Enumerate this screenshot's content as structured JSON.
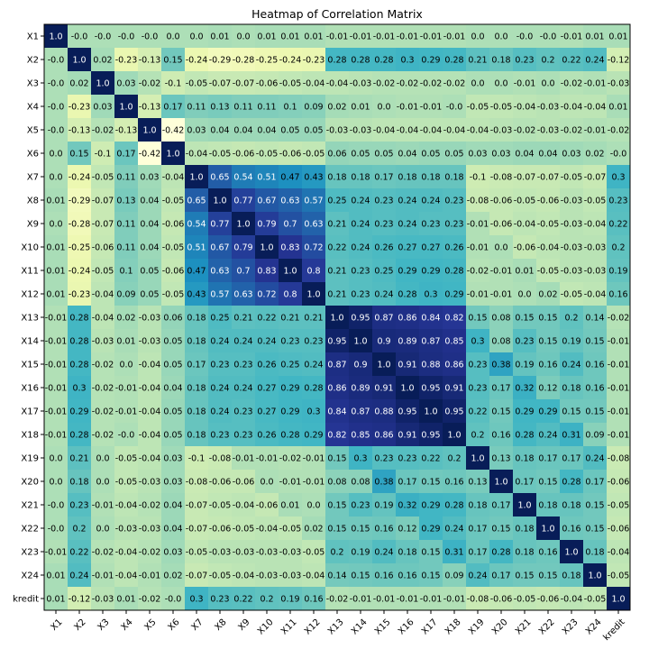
{
  "chart_data": {
    "type": "heatmap",
    "title": "Heatmap of Correlation Matrix",
    "labels": [
      "X1",
      "X2",
      "X3",
      "X4",
      "X5",
      "X6",
      "X7",
      "X8",
      "X9",
      "X10",
      "X11",
      "X12",
      "X13",
      "X14",
      "X15",
      "X16",
      "X17",
      "X18",
      "X19",
      "X20",
      "X21",
      "X22",
      "X23",
      "X24",
      "kredit"
    ],
    "matrix": [
      [
        "1.0",
        "-0.0",
        "-0.0",
        "-0.0",
        "-0.0",
        "0.0",
        "0.0",
        "0.01",
        "0.0",
        "0.01",
        "0.01",
        "0.01",
        "-0.01",
        "-0.01",
        "-0.01",
        "-0.01",
        "-0.01",
        "-0.01",
        "0.0",
        "0.0",
        "-0.0",
        "-0.0",
        "-0.01",
        "0.01",
        "0.01"
      ],
      [
        "-0.0",
        "1.0",
        "0.02",
        "-0.23",
        "-0.13",
        "0.15",
        "-0.24",
        "-0.29",
        "-0.28",
        "-0.25",
        "-0.24",
        "-0.23",
        "0.28",
        "0.28",
        "0.28",
        "0.3",
        "0.29",
        "0.28",
        "0.21",
        "0.18",
        "0.23",
        "0.2",
        "0.22",
        "0.24",
        "-0.12"
      ],
      [
        "-0.0",
        "0.02",
        "1.0",
        "0.03",
        "-0.02",
        "-0.1",
        "-0.05",
        "-0.07",
        "-0.07",
        "-0.06",
        "-0.05",
        "-0.04",
        "-0.04",
        "-0.03",
        "-0.02",
        "-0.02",
        "-0.02",
        "-0.02",
        "0.0",
        "0.0",
        "-0.01",
        "0.0",
        "-0.02",
        "-0.01",
        "-0.03"
      ],
      [
        "-0.0",
        "-0.23",
        "0.03",
        "1.0",
        "-0.13",
        "0.17",
        "0.11",
        "0.13",
        "0.11",
        "0.11",
        "0.1",
        "0.09",
        "0.02",
        "0.01",
        "0.0",
        "-0.01",
        "-0.01",
        "-0.0",
        "-0.05",
        "-0.05",
        "-0.04",
        "-0.03",
        "-0.04",
        "-0.04",
        "0.01"
      ],
      [
        "-0.0",
        "-0.13",
        "-0.02",
        "-0.13",
        "1.0",
        "-0.42",
        "0.03",
        "0.04",
        "0.04",
        "0.04",
        "0.05",
        "0.05",
        "-0.03",
        "-0.03",
        "-0.04",
        "-0.04",
        "-0.04",
        "-0.04",
        "-0.04",
        "-0.03",
        "-0.02",
        "-0.03",
        "-0.02",
        "-0.01",
        "-0.02"
      ],
      [
        "0.0",
        "0.15",
        "-0.1",
        "0.17",
        "-0.42",
        "1.0",
        "-0.04",
        "-0.05",
        "-0.06",
        "-0.05",
        "-0.06",
        "-0.05",
        "0.06",
        "0.05",
        "0.05",
        "0.04",
        "0.05",
        "0.05",
        "0.03",
        "0.03",
        "0.04",
        "0.04",
        "0.03",
        "0.02",
        "-0.0"
      ],
      [
        "0.0",
        "-0.24",
        "-0.05",
        "0.11",
        "0.03",
        "-0.04",
        "1.0",
        "0.65",
        "0.54",
        "0.51",
        "0.47",
        "0.43",
        "0.18",
        "0.18",
        "0.17",
        "0.18",
        "0.18",
        "0.18",
        "-0.1",
        "-0.08",
        "-0.07",
        "-0.07",
        "-0.05",
        "-0.07",
        "0.3"
      ],
      [
        "0.01",
        "-0.29",
        "-0.07",
        "0.13",
        "0.04",
        "-0.05",
        "0.65",
        "1.0",
        "0.77",
        "0.67",
        "0.63",
        "0.57",
        "0.25",
        "0.24",
        "0.23",
        "0.24",
        "0.24",
        "0.23",
        "-0.08",
        "-0.06",
        "-0.05",
        "-0.06",
        "-0.03",
        "-0.05",
        "0.23"
      ],
      [
        "0.0",
        "-0.28",
        "-0.07",
        "0.11",
        "0.04",
        "-0.06",
        "0.54",
        "0.77",
        "1.0",
        "0.79",
        "0.7",
        "0.63",
        "0.21",
        "0.24",
        "0.23",
        "0.24",
        "0.23",
        "0.23",
        "-0.01",
        "-0.06",
        "-0.04",
        "-0.05",
        "-0.03",
        "-0.04",
        "0.22"
      ],
      [
        "0.01",
        "-0.25",
        "-0.06",
        "0.11",
        "0.04",
        "-0.05",
        "0.51",
        "0.67",
        "0.79",
        "1.0",
        "0.83",
        "0.72",
        "0.22",
        "0.24",
        "0.26",
        "0.27",
        "0.27",
        "0.26",
        "-0.01",
        "0.0",
        "-0.06",
        "-0.04",
        "-0.03",
        "-0.03",
        "0.2"
      ],
      [
        "0.01",
        "-0.24",
        "-0.05",
        "0.1",
        "0.05",
        "-0.06",
        "0.47",
        "0.63",
        "0.7",
        "0.83",
        "1.0",
        "0.8",
        "0.21",
        "0.23",
        "0.25",
        "0.29",
        "0.29",
        "0.28",
        "-0.02",
        "-0.01",
        "0.01",
        "-0.05",
        "-0.03",
        "-0.03",
        "0.19"
      ],
      [
        "0.01",
        "-0.23",
        "-0.04",
        "0.09",
        "0.05",
        "-0.05",
        "0.43",
        "0.57",
        "0.63",
        "0.72",
        "0.8",
        "1.0",
        "0.21",
        "0.23",
        "0.24",
        "0.28",
        "0.3",
        "0.29",
        "-0.01",
        "-0.01",
        "0.0",
        "0.02",
        "-0.05",
        "-0.04",
        "0.16"
      ],
      [
        "-0.01",
        "0.28",
        "-0.04",
        "0.02",
        "-0.03",
        "0.06",
        "0.18",
        "0.25",
        "0.21",
        "0.22",
        "0.21",
        "0.21",
        "1.0",
        "0.95",
        "0.87",
        "0.86",
        "0.84",
        "0.82",
        "0.15",
        "0.08",
        "0.15",
        "0.15",
        "0.2",
        "0.14",
        "-0.02"
      ],
      [
        "-0.01",
        "0.28",
        "-0.03",
        "0.01",
        "-0.03",
        "0.05",
        "0.18",
        "0.24",
        "0.24",
        "0.24",
        "0.23",
        "0.23",
        "0.95",
        "1.0",
        "0.9",
        "0.89",
        "0.87",
        "0.85",
        "0.3",
        "0.08",
        "0.23",
        "0.15",
        "0.19",
        "0.15",
        "-0.01"
      ],
      [
        "-0.01",
        "0.28",
        "-0.02",
        "0.0",
        "-0.04",
        "0.05",
        "0.17",
        "0.23",
        "0.23",
        "0.26",
        "0.25",
        "0.24",
        "0.87",
        "0.9",
        "1.0",
        "0.91",
        "0.88",
        "0.86",
        "0.23",
        "0.38",
        "0.19",
        "0.16",
        "0.24",
        "0.16",
        "-0.01"
      ],
      [
        "-0.01",
        "0.3",
        "-0.02",
        "-0.01",
        "-0.04",
        "0.04",
        "0.18",
        "0.24",
        "0.24",
        "0.27",
        "0.29",
        "0.28",
        "0.86",
        "0.89",
        "0.91",
        "1.0",
        "0.95",
        "0.91",
        "0.23",
        "0.17",
        "0.32",
        "0.12",
        "0.18",
        "0.16",
        "-0.01"
      ],
      [
        "-0.01",
        "0.29",
        "-0.02",
        "-0.01",
        "-0.04",
        "0.05",
        "0.18",
        "0.24",
        "0.23",
        "0.27",
        "0.29",
        "0.3",
        "0.84",
        "0.87",
        "0.88",
        "0.95",
        "1.0",
        "0.95",
        "0.22",
        "0.15",
        "0.29",
        "0.29",
        "0.15",
        "0.15",
        "-0.01"
      ],
      [
        "-0.01",
        "0.28",
        "-0.02",
        "-0.0",
        "-0.04",
        "0.05",
        "0.18",
        "0.23",
        "0.23",
        "0.26",
        "0.28",
        "0.29",
        "0.82",
        "0.85",
        "0.86",
        "0.91",
        "0.95",
        "1.0",
        "0.2",
        "0.16",
        "0.28",
        "0.24",
        "0.31",
        "0.09",
        "-0.01"
      ],
      [
        "0.0",
        "0.21",
        "0.0",
        "-0.05",
        "-0.04",
        "0.03",
        "-0.1",
        "-0.08",
        "-0.01",
        "-0.01",
        "-0.02",
        "-0.01",
        "0.15",
        "0.3",
        "0.23",
        "0.23",
        "0.22",
        "0.2",
        "1.0",
        "0.13",
        "0.18",
        "0.17",
        "0.17",
        "0.24",
        "-0.08"
      ],
      [
        "0.0",
        "0.18",
        "0.0",
        "-0.05",
        "-0.03",
        "0.03",
        "-0.08",
        "-0.06",
        "-0.06",
        "0.0",
        "-0.01",
        "-0.01",
        "0.08",
        "0.08",
        "0.38",
        "0.17",
        "0.15",
        "0.16",
        "0.13",
        "1.0",
        "0.17",
        "0.15",
        "0.28",
        "0.17",
        "-0.06"
      ],
      [
        "-0.0",
        "0.23",
        "-0.01",
        "-0.04",
        "-0.02",
        "0.04",
        "-0.07",
        "-0.05",
        "-0.04",
        "-0.06",
        "0.01",
        "0.0",
        "0.15",
        "0.23",
        "0.19",
        "0.32",
        "0.29",
        "0.28",
        "0.18",
        "0.17",
        "1.0",
        "0.18",
        "0.18",
        "0.15",
        "-0.05"
      ],
      [
        "-0.0",
        "0.2",
        "0.0",
        "-0.03",
        "-0.03",
        "0.04",
        "-0.07",
        "-0.06",
        "-0.05",
        "-0.04",
        "-0.05",
        "0.02",
        "0.15",
        "0.15",
        "0.16",
        "0.12",
        "0.29",
        "0.24",
        "0.17",
        "0.15",
        "0.18",
        "1.0",
        "0.16",
        "0.15",
        "-0.06"
      ],
      [
        "-0.01",
        "0.22",
        "-0.02",
        "-0.04",
        "-0.02",
        "0.03",
        "-0.05",
        "-0.03",
        "-0.03",
        "-0.03",
        "-0.03",
        "-0.05",
        "0.2",
        "0.19",
        "0.24",
        "0.18",
        "0.15",
        "0.31",
        "0.17",
        "0.28",
        "0.18",
        "0.16",
        "1.0",
        "0.18",
        "-0.04"
      ],
      [
        "0.01",
        "0.24",
        "-0.01",
        "-0.04",
        "-0.01",
        "0.02",
        "-0.07",
        "-0.05",
        "-0.04",
        "-0.03",
        "-0.03",
        "-0.04",
        "0.14",
        "0.15",
        "0.16",
        "0.16",
        "0.15",
        "0.09",
        "0.24",
        "0.17",
        "0.15",
        "0.15",
        "0.18",
        "1.0",
        "-0.05"
      ],
      [
        "0.01",
        "-0.12",
        "-0.03",
        "0.01",
        "-0.02",
        "-0.0",
        "0.3",
        "0.23",
        "0.22",
        "0.2",
        "0.19",
        "0.16",
        "-0.02",
        "-0.01",
        "-0.01",
        "-0.01",
        "-0.01",
        "-0.01",
        "-0.08",
        "-0.06",
        "-0.05",
        "-0.06",
        "-0.04",
        "-0.05",
        "1.0"
      ]
    ],
    "value_range": [
      -0.42,
      1.0
    ],
    "colormap": [
      "#ffffd9",
      "#edf8b1",
      "#c7e9b4",
      "#7fcdbb",
      "#41b6c4",
      "#1d91c0",
      "#225ea8",
      "#253494",
      "#081d58"
    ],
    "grid": false
  }
}
